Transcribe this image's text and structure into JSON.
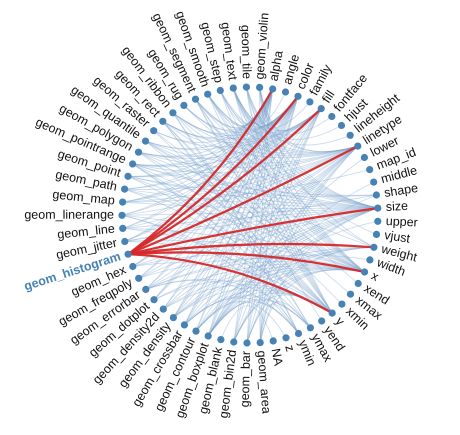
{
  "title": "",
  "colors": {
    "node": "#4682b4",
    "link": "#7ba3cc",
    "highlight_link": "#d62728",
    "highlight_label": "#4682b4",
    "label": "#111111"
  },
  "highlighted_node": "geom_histogram",
  "nodes": [
    "alpha",
    "angle",
    "color",
    "family",
    "fill",
    "fontface",
    "hjust",
    "lineheight",
    "linetype",
    "lower",
    "map_id",
    "middle",
    "shape",
    "size",
    "upper",
    "vjust",
    "weight",
    "width",
    "x",
    "xend",
    "xmax",
    "xmin",
    "y",
    "yend",
    "ymax",
    "ymin",
    "z",
    "NA",
    "geom_area",
    "geom_bar",
    "geom_bin2d",
    "geom_blank",
    "geom_boxplot",
    "geom_contour",
    "geom_crossbar",
    "geom_density",
    "geom_density2d",
    "geom_dotplot",
    "geom_errorbar",
    "geom_freqpoly",
    "geom_hex",
    "geom_histogram",
    "geom_jitter",
    "geom_line",
    "geom_linerange",
    "geom_map",
    "geom_path",
    "geom_point",
    "geom_pointrange",
    "geom_polygon",
    "geom_quantile",
    "geom_raster",
    "geom_rect",
    "geom_ribbon",
    "geom_rug",
    "geom_segment",
    "geom_smooth",
    "geom_step",
    "geom_text",
    "geom_tile",
    "geom_violin"
  ],
  "highlighted_links": [
    [
      "geom_histogram",
      "alpha"
    ],
    [
      "geom_histogram",
      "color"
    ],
    [
      "geom_histogram",
      "fill"
    ],
    [
      "geom_histogram",
      "linetype"
    ],
    [
      "geom_histogram",
      "size"
    ],
    [
      "geom_histogram",
      "weight"
    ],
    [
      "geom_histogram",
      "x"
    ],
    [
      "geom_histogram",
      "y"
    ]
  ],
  "links": [
    [
      "geom_violin",
      "alpha"
    ],
    [
      "geom_violin",
      "color"
    ],
    [
      "geom_violin",
      "fill"
    ],
    [
      "geom_violin",
      "linetype"
    ],
    [
      "geom_violin",
      "size"
    ],
    [
      "geom_violin",
      "weight"
    ],
    [
      "geom_violin",
      "x"
    ],
    [
      "geom_violin",
      "y"
    ],
    [
      "geom_tile",
      "alpha"
    ],
    [
      "geom_tile",
      "color"
    ],
    [
      "geom_tile",
      "fill"
    ],
    [
      "geom_tile",
      "linetype"
    ],
    [
      "geom_tile",
      "size"
    ],
    [
      "geom_tile",
      "x"
    ],
    [
      "geom_tile",
      "y"
    ],
    [
      "geom_text",
      "alpha"
    ],
    [
      "geom_text",
      "angle"
    ],
    [
      "geom_text",
      "color"
    ],
    [
      "geom_text",
      "family"
    ],
    [
      "geom_text",
      "fontface"
    ],
    [
      "geom_text",
      "hjust"
    ],
    [
      "geom_text",
      "lineheight"
    ],
    [
      "geom_text",
      "size"
    ],
    [
      "geom_text",
      "vjust"
    ],
    [
      "geom_text",
      "x"
    ],
    [
      "geom_text",
      "y"
    ],
    [
      "geom_step",
      "alpha"
    ],
    [
      "geom_step",
      "color"
    ],
    [
      "geom_step",
      "linetype"
    ],
    [
      "geom_step",
      "size"
    ],
    [
      "geom_step",
      "x"
    ],
    [
      "geom_step",
      "y"
    ],
    [
      "geom_smooth",
      "alpha"
    ],
    [
      "geom_smooth",
      "color"
    ],
    [
      "geom_smooth",
      "fill"
    ],
    [
      "geom_smooth",
      "linetype"
    ],
    [
      "geom_smooth",
      "size"
    ],
    [
      "geom_smooth",
      "weight"
    ],
    [
      "geom_smooth",
      "x"
    ],
    [
      "geom_smooth",
      "y"
    ],
    [
      "geom_segment",
      "alpha"
    ],
    [
      "geom_segment",
      "color"
    ],
    [
      "geom_segment",
      "linetype"
    ],
    [
      "geom_segment",
      "size"
    ],
    [
      "geom_segment",
      "x"
    ],
    [
      "geom_segment",
      "xend"
    ],
    [
      "geom_segment",
      "y"
    ],
    [
      "geom_segment",
      "yend"
    ],
    [
      "geom_rug",
      "alpha"
    ],
    [
      "geom_rug",
      "color"
    ],
    [
      "geom_rug",
      "linetype"
    ],
    [
      "geom_rug",
      "size"
    ],
    [
      "geom_ribbon",
      "alpha"
    ],
    [
      "geom_ribbon",
      "color"
    ],
    [
      "geom_ribbon",
      "fill"
    ],
    [
      "geom_ribbon",
      "linetype"
    ],
    [
      "geom_ribbon",
      "size"
    ],
    [
      "geom_ribbon",
      "x"
    ],
    [
      "geom_ribbon",
      "ymax"
    ],
    [
      "geom_ribbon",
      "ymin"
    ],
    [
      "geom_rect",
      "alpha"
    ],
    [
      "geom_rect",
      "color"
    ],
    [
      "geom_rect",
      "fill"
    ],
    [
      "geom_rect",
      "linetype"
    ],
    [
      "geom_rect",
      "size"
    ],
    [
      "geom_rect",
      "xmax"
    ],
    [
      "geom_rect",
      "xmin"
    ],
    [
      "geom_rect",
      "ymax"
    ],
    [
      "geom_rect",
      "ymin"
    ],
    [
      "geom_raster",
      "alpha"
    ],
    [
      "geom_raster",
      "fill"
    ],
    [
      "geom_raster",
      "x"
    ],
    [
      "geom_raster",
      "y"
    ],
    [
      "geom_quantile",
      "alpha"
    ],
    [
      "geom_quantile",
      "color"
    ],
    [
      "geom_quantile",
      "linetype"
    ],
    [
      "geom_quantile",
      "size"
    ],
    [
      "geom_quantile",
      "weight"
    ],
    [
      "geom_quantile",
      "x"
    ],
    [
      "geom_quantile",
      "y"
    ],
    [
      "geom_polygon",
      "alpha"
    ],
    [
      "geom_polygon",
      "color"
    ],
    [
      "geom_polygon",
      "fill"
    ],
    [
      "geom_polygon",
      "linetype"
    ],
    [
      "geom_polygon",
      "size"
    ],
    [
      "geom_polygon",
      "x"
    ],
    [
      "geom_polygon",
      "y"
    ],
    [
      "geom_pointrange",
      "alpha"
    ],
    [
      "geom_pointrange",
      "color"
    ],
    [
      "geom_pointrange",
      "fill"
    ],
    [
      "geom_pointrange",
      "linetype"
    ],
    [
      "geom_pointrange",
      "shape"
    ],
    [
      "geom_pointrange",
      "size"
    ],
    [
      "geom_pointrange",
      "x"
    ],
    [
      "geom_pointrange",
      "y"
    ],
    [
      "geom_pointrange",
      "ymax"
    ],
    [
      "geom_pointrange",
      "ymin"
    ],
    [
      "geom_point",
      "alpha"
    ],
    [
      "geom_point",
      "color"
    ],
    [
      "geom_point",
      "fill"
    ],
    [
      "geom_point",
      "shape"
    ],
    [
      "geom_point",
      "size"
    ],
    [
      "geom_point",
      "x"
    ],
    [
      "geom_point",
      "y"
    ],
    [
      "geom_path",
      "alpha"
    ],
    [
      "geom_path",
      "color"
    ],
    [
      "geom_path",
      "linetype"
    ],
    [
      "geom_path",
      "size"
    ],
    [
      "geom_path",
      "x"
    ],
    [
      "geom_path",
      "y"
    ],
    [
      "geom_map",
      "alpha"
    ],
    [
      "geom_map",
      "color"
    ],
    [
      "geom_map",
      "fill"
    ],
    [
      "geom_map",
      "linetype"
    ],
    [
      "geom_map",
      "map_id"
    ],
    [
      "geom_map",
      "size"
    ],
    [
      "geom_linerange",
      "alpha"
    ],
    [
      "geom_linerange",
      "color"
    ],
    [
      "geom_linerange",
      "linetype"
    ],
    [
      "geom_linerange",
      "size"
    ],
    [
      "geom_linerange",
      "x"
    ],
    [
      "geom_linerange",
      "ymax"
    ],
    [
      "geom_linerange",
      "ymin"
    ],
    [
      "geom_line",
      "alpha"
    ],
    [
      "geom_line",
      "color"
    ],
    [
      "geom_line",
      "linetype"
    ],
    [
      "geom_line",
      "size"
    ],
    [
      "geom_line",
      "x"
    ],
    [
      "geom_line",
      "y"
    ],
    [
      "geom_jitter",
      "alpha"
    ],
    [
      "geom_jitter",
      "color"
    ],
    [
      "geom_jitter",
      "fill"
    ],
    [
      "geom_jitter",
      "shape"
    ],
    [
      "geom_jitter",
      "size"
    ],
    [
      "geom_jitter",
      "x"
    ],
    [
      "geom_jitter",
      "y"
    ],
    [
      "geom_hex",
      "alpha"
    ],
    [
      "geom_hex",
      "color"
    ],
    [
      "geom_hex",
      "fill"
    ],
    [
      "geom_hex",
      "size"
    ],
    [
      "geom_hex",
      "x"
    ],
    [
      "geom_hex",
      "y"
    ],
    [
      "geom_freqpoly",
      "alpha"
    ],
    [
      "geom_freqpoly",
      "color"
    ],
    [
      "geom_freqpoly",
      "linetype"
    ],
    [
      "geom_freqpoly",
      "size"
    ],
    [
      "geom_freqpoly",
      "x"
    ],
    [
      "geom_errorbar",
      "alpha"
    ],
    [
      "geom_errorbar",
      "color"
    ],
    [
      "geom_errorbar",
      "linetype"
    ],
    [
      "geom_errorbar",
      "size"
    ],
    [
      "geom_errorbar",
      "width"
    ],
    [
      "geom_errorbar",
      "x"
    ],
    [
      "geom_errorbar",
      "ymax"
    ],
    [
      "geom_errorbar",
      "ymin"
    ],
    [
      "geom_dotplot",
      "alpha"
    ],
    [
      "geom_dotplot",
      "color"
    ],
    [
      "geom_dotplot",
      "fill"
    ],
    [
      "geom_dotplot",
      "x"
    ],
    [
      "geom_dotplot",
      "y"
    ],
    [
      "geom_density2d",
      "alpha"
    ],
    [
      "geom_density2d",
      "color"
    ],
    [
      "geom_density2d",
      "linetype"
    ],
    [
      "geom_density2d",
      "size"
    ],
    [
      "geom_density2d",
      "x"
    ],
    [
      "geom_density2d",
      "y"
    ],
    [
      "geom_density",
      "alpha"
    ],
    [
      "geom_density",
      "color"
    ],
    [
      "geom_density",
      "fill"
    ],
    [
      "geom_density",
      "linetype"
    ],
    [
      "geom_density",
      "size"
    ],
    [
      "geom_density",
      "weight"
    ],
    [
      "geom_density",
      "x"
    ],
    [
      "geom_density",
      "y"
    ],
    [
      "geom_crossbar",
      "alpha"
    ],
    [
      "geom_crossbar",
      "color"
    ],
    [
      "geom_crossbar",
      "fill"
    ],
    [
      "geom_crossbar",
      "linetype"
    ],
    [
      "geom_crossbar",
      "size"
    ],
    [
      "geom_crossbar",
      "x"
    ],
    [
      "geom_crossbar",
      "y"
    ],
    [
      "geom_crossbar",
      "ymax"
    ],
    [
      "geom_crossbar",
      "ymin"
    ],
    [
      "geom_contour",
      "alpha"
    ],
    [
      "geom_contour",
      "color"
    ],
    [
      "geom_contour",
      "linetype"
    ],
    [
      "geom_contour",
      "size"
    ],
    [
      "geom_contour",
      "weight"
    ],
    [
      "geom_contour",
      "x"
    ],
    [
      "geom_contour",
      "y"
    ],
    [
      "geom_contour",
      "z"
    ],
    [
      "geom_boxplot",
      "alpha"
    ],
    [
      "geom_boxplot",
      "color"
    ],
    [
      "geom_boxplot",
      "fill"
    ],
    [
      "geom_boxplot",
      "linetype"
    ],
    [
      "geom_boxplot",
      "lower"
    ],
    [
      "geom_boxplot",
      "middle"
    ],
    [
      "geom_boxplot",
      "shape"
    ],
    [
      "geom_boxplot",
      "size"
    ],
    [
      "geom_boxplot",
      "upper"
    ],
    [
      "geom_boxplot",
      "weight"
    ],
    [
      "geom_boxplot",
      "x"
    ],
    [
      "geom_boxplot",
      "y"
    ],
    [
      "geom_boxplot",
      "ymax"
    ],
    [
      "geom_boxplot",
      "ymin"
    ],
    [
      "geom_blank",
      "NA"
    ],
    [
      "geom_bin2d",
      "alpha"
    ],
    [
      "geom_bin2d",
      "color"
    ],
    [
      "geom_bin2d",
      "fill"
    ],
    [
      "geom_bin2d",
      "linetype"
    ],
    [
      "geom_bin2d",
      "size"
    ],
    [
      "geom_bin2d",
      "weight"
    ],
    [
      "geom_bin2d",
      "x"
    ],
    [
      "geom_bin2d",
      "y"
    ],
    [
      "geom_bar",
      "alpha"
    ],
    [
      "geom_bar",
      "color"
    ],
    [
      "geom_bar",
      "fill"
    ],
    [
      "geom_bar",
      "linetype"
    ],
    [
      "geom_bar",
      "size"
    ],
    [
      "geom_bar",
      "weight"
    ],
    [
      "geom_bar",
      "x"
    ],
    [
      "geom_area",
      "alpha"
    ],
    [
      "geom_area",
      "color"
    ],
    [
      "geom_area",
      "fill"
    ],
    [
      "geom_area",
      "linetype"
    ],
    [
      "geom_area",
      "size"
    ],
    [
      "geom_area",
      "x"
    ],
    [
      "geom_area",
      "ymax"
    ],
    [
      "geom_area",
      "ymin"
    ]
  ]
}
